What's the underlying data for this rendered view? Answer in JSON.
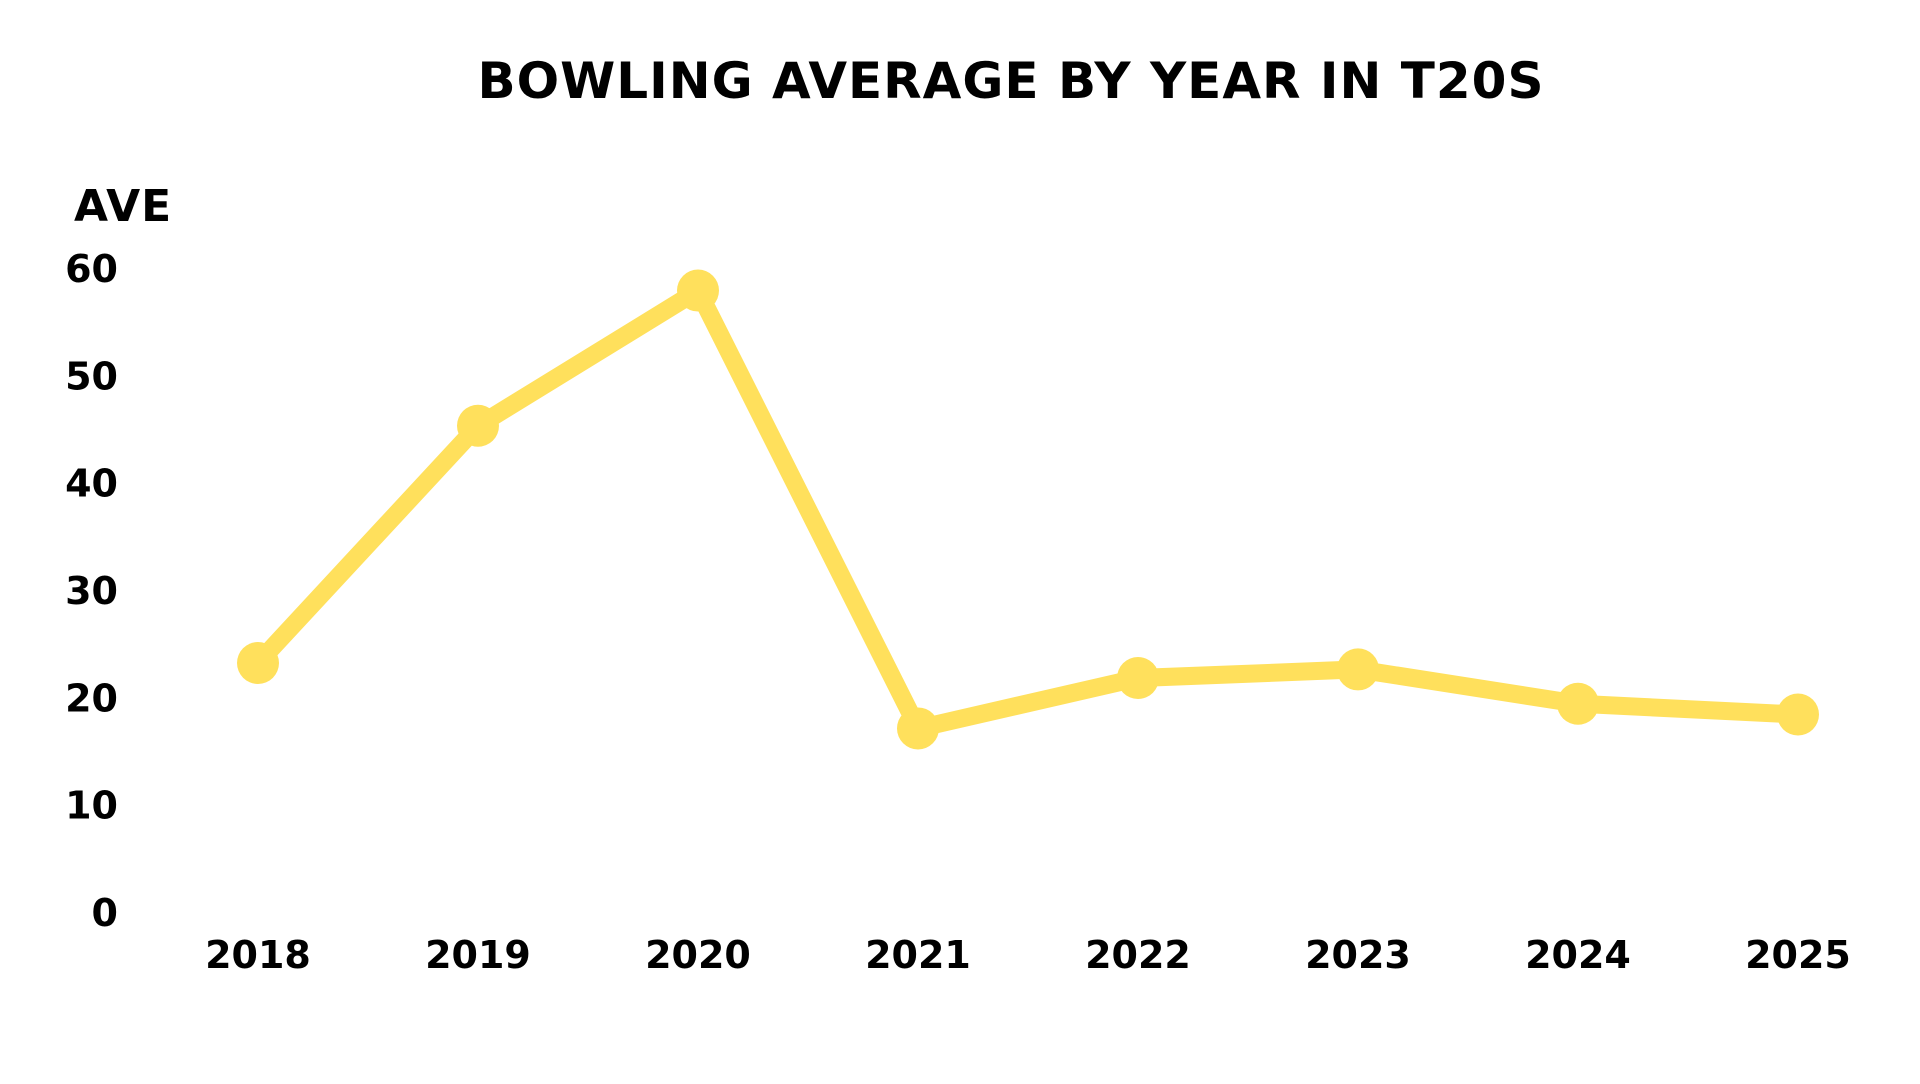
{
  "chart_data": {
    "type": "line",
    "title": "BOWLING AVERAGE BY YEAR IN T20S",
    "xlabel": "",
    "ylabel": "AVE",
    "categories": [
      "2018",
      "2019",
      "2020",
      "2021",
      "2022",
      "2023",
      "2024",
      "2025"
    ],
    "series": [
      {
        "values": [
          23.2,
          45.3,
          57.9,
          17.1,
          21.8,
          22.6,
          19.4,
          18.4
        ]
      }
    ],
    "ylim": [
      0,
      60
    ],
    "yticks": [
      "0",
      "10",
      "20",
      "30",
      "40",
      "50",
      "60"
    ],
    "grid": false,
    "legend": "none",
    "line_color": "#FFE05C",
    "text_color": "#000000"
  }
}
